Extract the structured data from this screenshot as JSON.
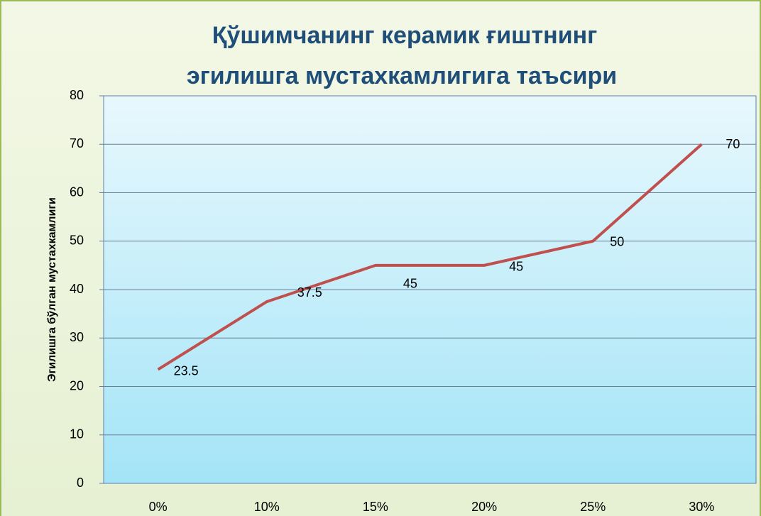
{
  "chart_data": {
    "type": "line",
    "title": [
      "Қўшимчанинг керамик ғиштнинг",
      "эгилишга мустахкамлигига таъсири"
    ],
    "y_label": "Эгилишга бўлган мустахкамлиги",
    "categories": [
      "0%",
      "10%",
      "15%",
      "20%",
      "25%",
      "30%"
    ],
    "series": [
      {
        "name": "Эгилишга бўлган мустахкамлиги",
        "color": "#c0504d",
        "values": [
          23.5,
          37.5,
          45,
          45,
          50,
          70
        ]
      }
    ],
    "ylim": [
      0,
      80
    ],
    "yticks": [
      0,
      10,
      20,
      30,
      40,
      50,
      60,
      70,
      80
    ],
    "grid": true,
    "legend": false
  }
}
